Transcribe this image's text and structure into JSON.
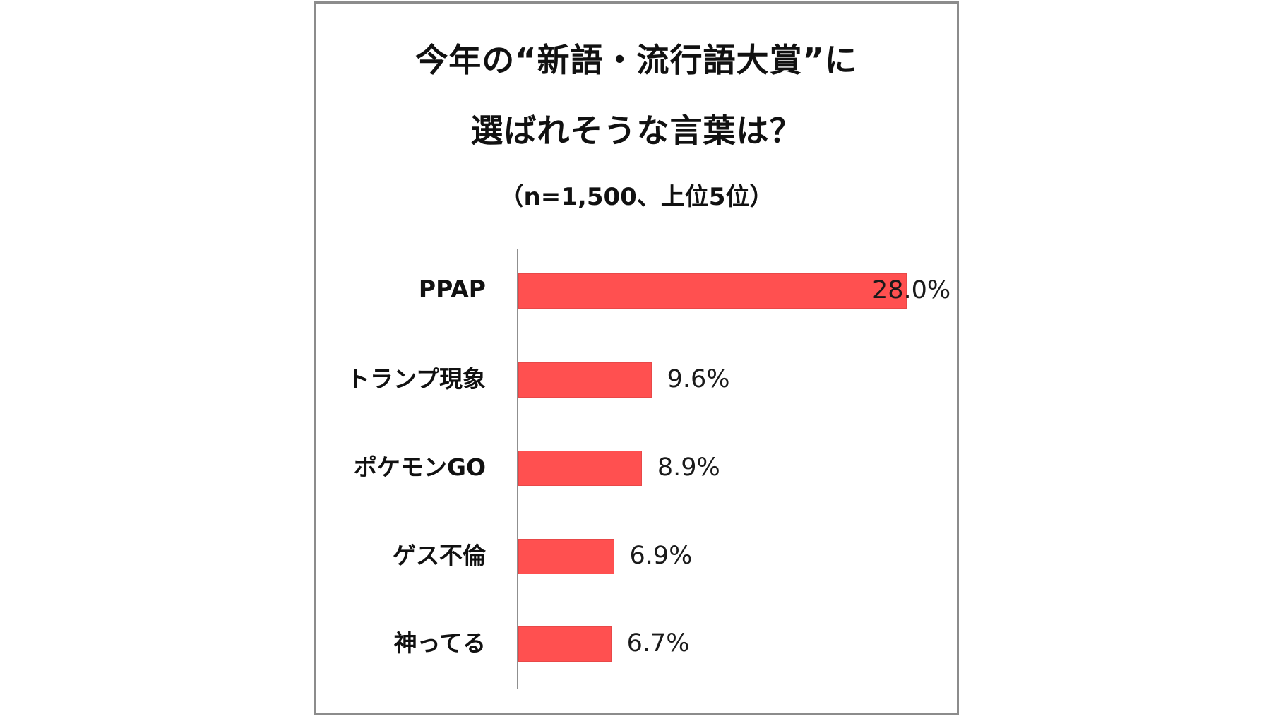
{
  "title": {
    "line1": "今年の“新語・流行語大賞”に",
    "line2": "選ばれそうな言葉は？",
    "subtitle": "（n=1,500、上位5位）"
  },
  "colors": {
    "bar": "#FF5050",
    "frame_border": "#8C8C8C",
    "axis": "#8F8F8F",
    "text": "#111111"
  },
  "rows": [
    {
      "label": "PPAP",
      "value": 28.0,
      "value_label": "28.0%"
    },
    {
      "label": "トランプ現象",
      "value": 9.6,
      "value_label": "9.6%"
    },
    {
      "label": "ポケモンGO",
      "value": 8.9,
      "value_label": "8.9%"
    },
    {
      "label": "ゲス不倫",
      "value": 6.9,
      "value_label": "6.9%"
    },
    {
      "label": "神ってる",
      "value": 6.7,
      "value_label": "6.7%"
    }
  ],
  "chart_data": {
    "type": "bar",
    "orientation": "horizontal",
    "title": "今年の“新語・流行語大賞”に選ばれそうな言葉は？",
    "subtitle": "（n=1,500、上位5位）",
    "categories": [
      "PPAP",
      "トランプ現象",
      "ポケモンGO",
      "ゲス不倫",
      "神ってる"
    ],
    "values": [
      28.0,
      9.6,
      8.9,
      6.9,
      6.7
    ],
    "value_labels": [
      "28.0%",
      "9.6%",
      "8.9%",
      "6.9%",
      "6.7%"
    ],
    "unit": "%",
    "xlabel": "",
    "ylabel": "",
    "xlim": [
      0,
      28.0
    ],
    "grid": false,
    "legend": null,
    "bar_color": "#FF5050"
  }
}
